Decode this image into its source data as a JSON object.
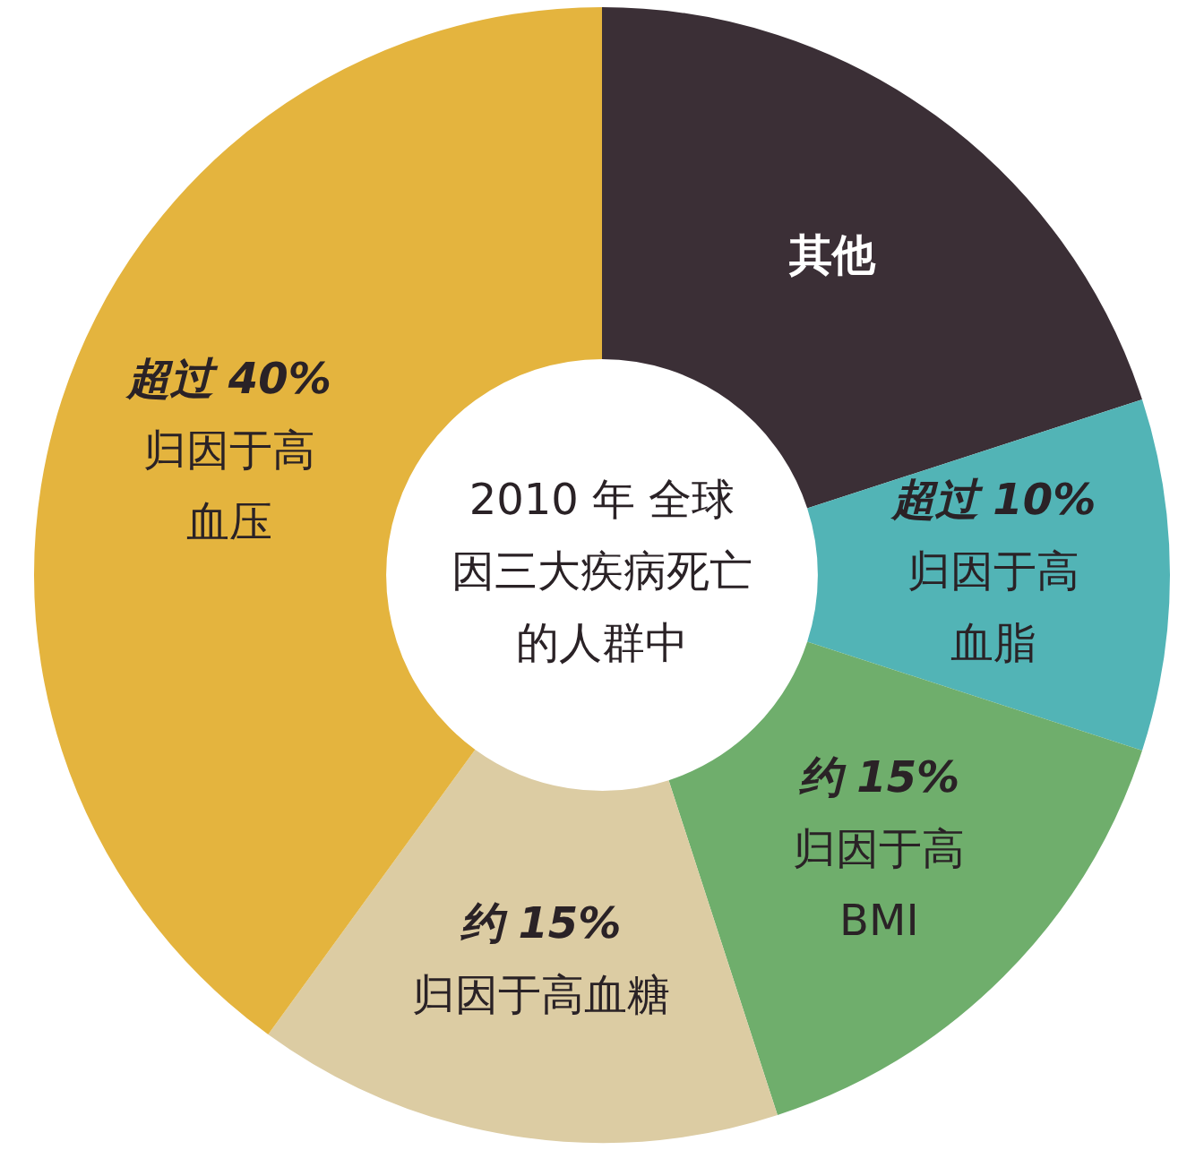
{
  "chart_data": {
    "type": "donut",
    "title": "2010 年 全球因三大疾病死亡的人群中",
    "categories": [
      "其他",
      "归因于高血脂",
      "归因于高BMI",
      "归因于高血糖",
      "归因于高血压"
    ],
    "values": [
      20,
      10,
      15,
      15,
      40
    ],
    "value_labels": [
      null,
      "超过 10%",
      "约 15%",
      "约 15%",
      "超过 40%"
    ],
    "colors": [
      "#3b2f36",
      "#52b4b6",
      "#6fae6c",
      "#dccca3",
      "#e4b43e"
    ]
  }
}
